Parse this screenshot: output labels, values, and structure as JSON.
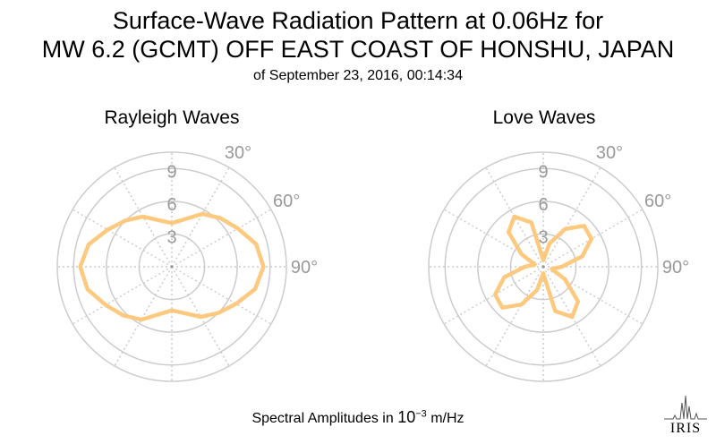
{
  "title": {
    "line1": "Surface-Wave Radiation Pattern at 0.06Hz for",
    "line2": "MW 6.2 (GCMT) OFF EAST COAST OF HONSHU, JAPAN",
    "line3": "of September 23, 2016, 00:14:34"
  },
  "footer": {
    "prefix": "Spectral Amplitudes in ",
    "base": "10",
    "exponent": "−3",
    "unit": " m/Hz"
  },
  "logo": {
    "text": "IRIS"
  },
  "colors": {
    "curve": "#fdc97e",
    "grid": "#cccccc",
    "tick_label": "#999999",
    "background": "#ffffff"
  },
  "chart_data": [
    {
      "type": "polar-line",
      "title": "Rayleigh Waves",
      "radial_ticks": [
        "3",
        "6",
        "9"
      ],
      "radial_max": 10.5,
      "angle_ticks": [
        "30°",
        "60°",
        "90°"
      ],
      "series": [
        {
          "angle_deg": [
            0,
            15,
            30,
            45,
            60,
            75,
            90,
            105,
            120,
            135,
            150,
            165,
            180,
            195,
            210,
            225,
            240,
            255,
            270,
            285,
            300,
            315,
            330,
            345,
            360
          ],
          "amplitude": [
            4.0,
            4.5,
            5.6,
            6.3,
            7.0,
            8.0,
            8.4,
            7.9,
            6.8,
            6.0,
            5.3,
            4.4,
            4.0,
            4.5,
            5.6,
            6.3,
            7.0,
            8.0,
            8.4,
            7.9,
            6.8,
            6.0,
            5.3,
            4.4,
            4.0
          ]
        }
      ]
    },
    {
      "type": "polar-line",
      "title": "Love Waves",
      "radial_ticks": [
        "3",
        "6",
        "9"
      ],
      "radial_max": 10.5,
      "angle_ticks": [
        "30°",
        "60°",
        "90°"
      ],
      "series": [
        {
          "angle_deg": [
            0,
            15,
            30,
            45,
            60,
            75,
            90,
            105,
            120,
            135,
            150,
            165,
            180,
            195,
            210,
            225,
            240,
            255,
            270,
            285,
            300,
            315,
            330,
            345,
            360
          ],
          "amplitude": [
            0.6,
            2.2,
            4.0,
            5.3,
            5.1,
            3.7,
            1.7,
            0.8,
            2.3,
            4.5,
            5.3,
            4.2,
            0.6,
            2.2,
            4.0,
            5.3,
            5.1,
            3.7,
            1.7,
            0.8,
            2.3,
            4.5,
            5.3,
            4.2,
            0.6
          ]
        }
      ]
    }
  ]
}
